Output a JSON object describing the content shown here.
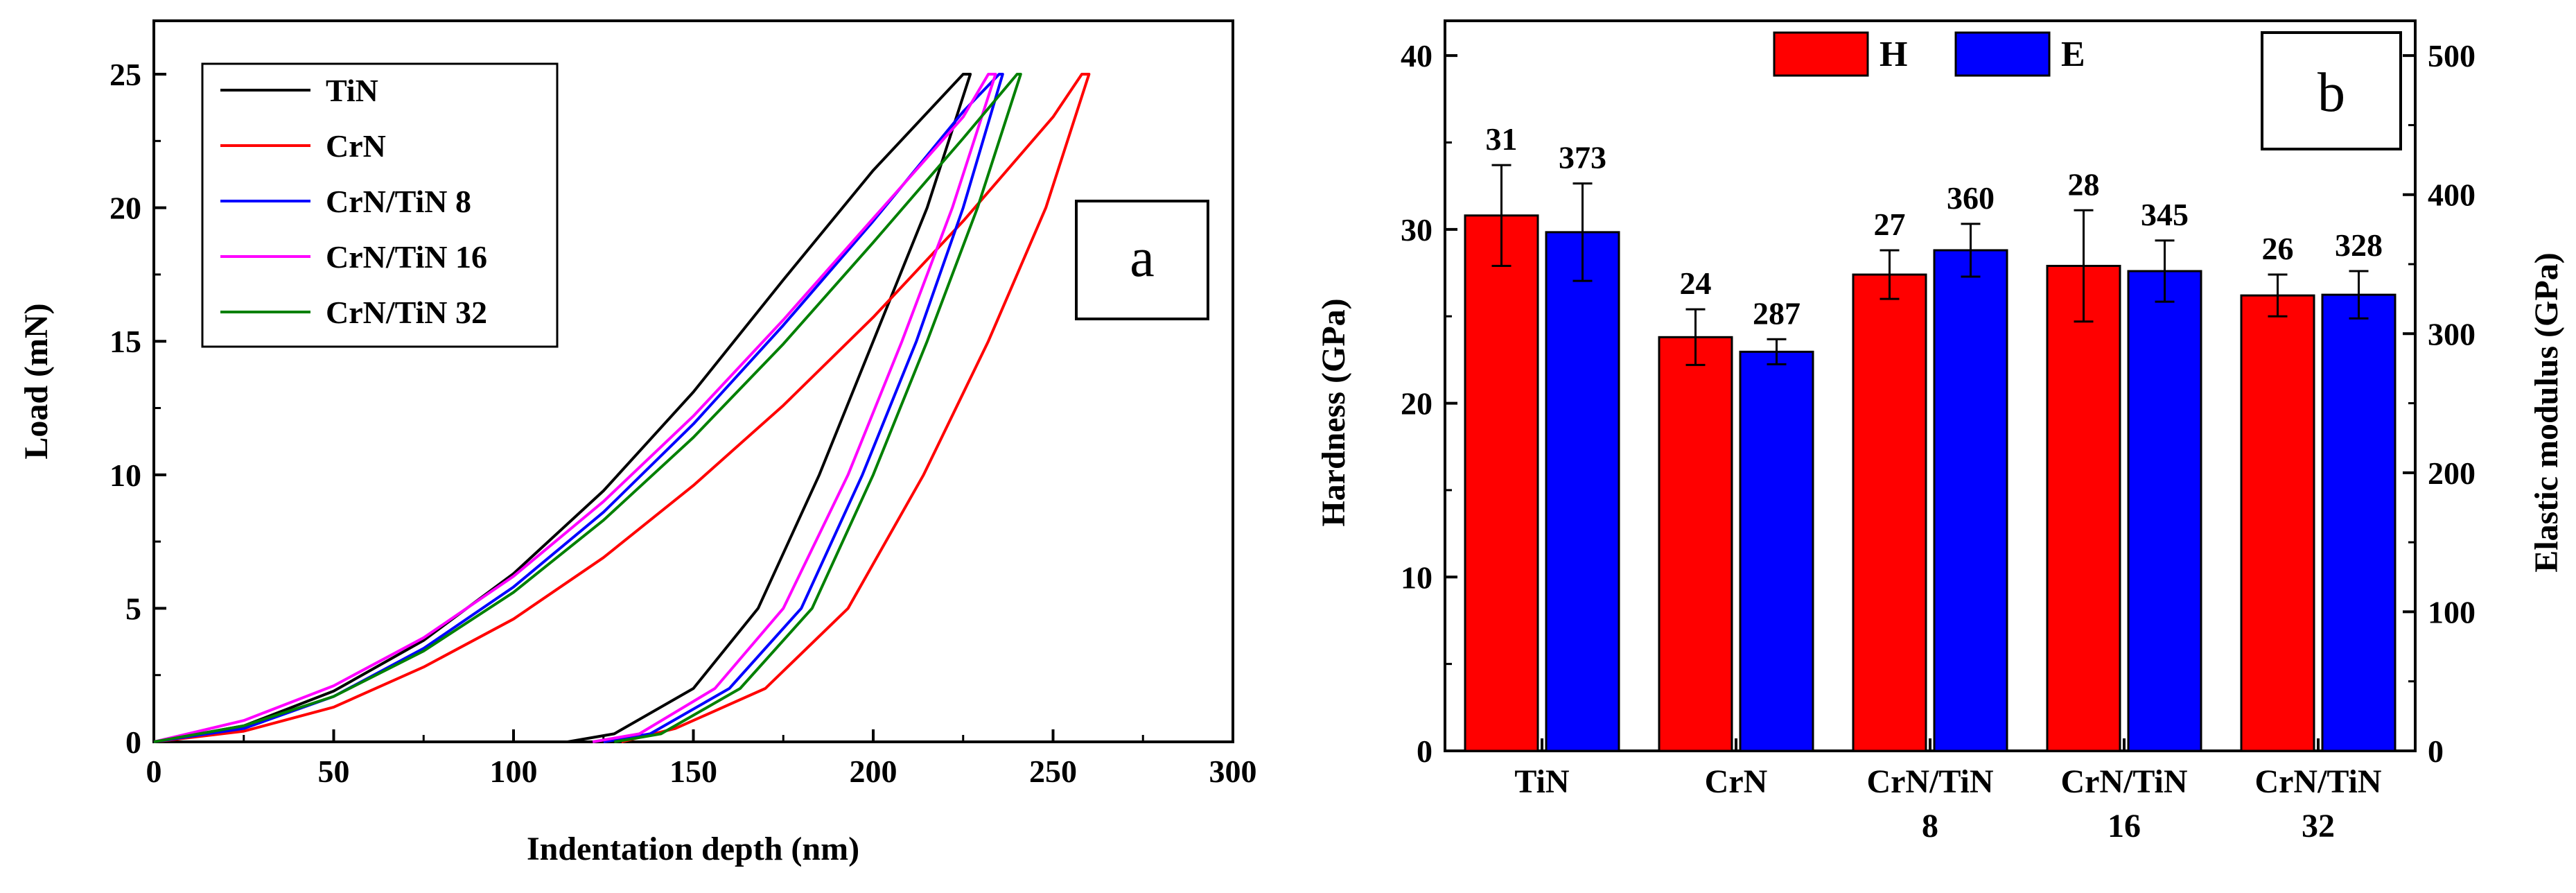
{
  "chart_data": [
    {
      "panel_label": "a",
      "type": "line",
      "xlabel": "Indentation depth (nm)",
      "ylabel": "Load (mN)",
      "xlim": [
        0,
        300
      ],
      "ylim": [
        0,
        27
      ],
      "xticks": [
        0,
        50,
        100,
        150,
        200,
        250,
        300
      ],
      "yticks": [
        0,
        5,
        10,
        15,
        20,
        25
      ],
      "legend_position": "top-left",
      "series": [
        {
          "name": "TiN",
          "color": "#000000",
          "loading": [
            [
              0,
              0
            ],
            [
              25,
              0.6
            ],
            [
              50,
              1.9
            ],
            [
              75,
              3.8
            ],
            [
              100,
              6.3
            ],
            [
              125,
              9.4
            ],
            [
              150,
              13.1
            ],
            [
              175,
              17.3
            ],
            [
              200,
              21.4
            ],
            [
              225,
              25
            ]
          ],
          "unloading": [
            [
              227,
              25
            ],
            [
              215,
              20
            ],
            [
              200,
              15
            ],
            [
              185,
              10
            ],
            [
              168,
              5
            ],
            [
              150,
              2
            ],
            [
              128,
              0.3
            ],
            [
              115,
              0
            ]
          ]
        },
        {
          "name": "CrN",
          "color": "#ff0000",
          "loading": [
            [
              0,
              0
            ],
            [
              25,
              0.4
            ],
            [
              50,
              1.3
            ],
            [
              75,
              2.8
            ],
            [
              100,
              4.6
            ],
            [
              125,
              6.9
            ],
            [
              150,
              9.6
            ],
            [
              175,
              12.6
            ],
            [
              200,
              15.9
            ],
            [
              225,
              19.5
            ],
            [
              250,
              23.4
            ],
            [
              258,
              25
            ]
          ],
          "unloading": [
            [
              260,
              25
            ],
            [
              248,
              20
            ],
            [
              232,
              15
            ],
            [
              214,
              10
            ],
            [
              193,
              5
            ],
            [
              170,
              2
            ],
            [
              145,
              0.5
            ],
            [
              130,
              0
            ]
          ]
        },
        {
          "name": "CrN/TiN 8",
          "color": "#0000ff",
          "loading": [
            [
              0,
              0
            ],
            [
              25,
              0.5
            ],
            [
              50,
              1.7
            ],
            [
              75,
              3.5
            ],
            [
              100,
              5.8
            ],
            [
              125,
              8.6
            ],
            [
              150,
              11.9
            ],
            [
              175,
              15.6
            ],
            [
              200,
              19.5
            ],
            [
              225,
              23.6
            ],
            [
              235,
              25
            ]
          ],
          "unloading": [
            [
              236,
              25
            ],
            [
              225,
              20
            ],
            [
              212,
              15
            ],
            [
              197,
              10
            ],
            [
              180,
              5
            ],
            [
              160,
              2
            ],
            [
              138,
              0.3
            ],
            [
              125,
              0
            ]
          ]
        },
        {
          "name": "CrN/TiN 16",
          "color": "#ff00ff",
          "loading": [
            [
              0,
              0
            ],
            [
              25,
              0.8
            ],
            [
              50,
              2.1
            ],
            [
              75,
              3.9
            ],
            [
              100,
              6.2
            ],
            [
              125,
              9
            ],
            [
              150,
              12.2
            ],
            [
              175,
              15.8
            ],
            [
              200,
              19.6
            ],
            [
              225,
              23.4
            ],
            [
              232,
              25
            ]
          ],
          "unloading": [
            [
              234,
              25
            ],
            [
              222,
              20
            ],
            [
              208,
              15
            ],
            [
              193,
              10
            ],
            [
              175,
              5
            ],
            [
              156,
              2
            ],
            [
              135,
              0.3
            ],
            [
              122,
              0
            ]
          ]
        },
        {
          "name": "CrN/TiN 32",
          "color": "#008000",
          "loading": [
            [
              0,
              0
            ],
            [
              25,
              0.6
            ],
            [
              50,
              1.7
            ],
            [
              75,
              3.4
            ],
            [
              100,
              5.6
            ],
            [
              125,
              8.3
            ],
            [
              150,
              11.4
            ],
            [
              175,
              14.9
            ],
            [
              200,
              18.7
            ],
            [
              225,
              22.6
            ],
            [
              240,
              25
            ]
          ],
          "unloading": [
            [
              241,
              25
            ],
            [
              229,
              20
            ],
            [
              215,
              15
            ],
            [
              200,
              10
            ],
            [
              183,
              5
            ],
            [
              163,
              2
            ],
            [
              141,
              0.3
            ],
            [
              128,
              0
            ]
          ]
        }
      ]
    },
    {
      "panel_label": "b",
      "type": "bar",
      "categories": [
        "TiN",
        "CrN",
        "CrN/TiN 8",
        "CrN/TiN 16",
        "CrN/TiN 32"
      ],
      "tick_labels": [
        [
          "TiN"
        ],
        [
          "CrN"
        ],
        [
          "CrN/TiN",
          "8"
        ],
        [
          "CrN/TiN",
          "16"
        ],
        [
          "CrN/TiN",
          "32"
        ]
      ],
      "ylabel_left": "Hardness (GPa)",
      "ylabel_right": "Elastic modulus (GPa)",
      "ylim_left": [
        0,
        42
      ],
      "ylim_right": [
        0,
        525
      ],
      "yticks_left": [
        0,
        10,
        20,
        30,
        40
      ],
      "yticks_right": [
        0,
        100,
        200,
        300,
        400,
        500
      ],
      "legend_position": "top-center",
      "series": [
        {
          "name": "H",
          "color": "#ff0000",
          "axis": "left",
          "values": [
            30.8,
            23.8,
            27.4,
            27.9,
            26.2
          ],
          "errors": [
            2.9,
            1.6,
            1.4,
            3.2,
            1.2
          ],
          "value_labels": [
            "31",
            "24",
            "27",
            "28",
            "26"
          ]
        },
        {
          "name": "E",
          "color": "#0000ff",
          "axis": "right",
          "values": [
            373,
            287,
            360,
            345,
            328
          ],
          "errors": [
            35,
            9,
            19,
            22,
            17
          ],
          "value_labels": [
            "373",
            "287",
            "360",
            "345",
            "328"
          ]
        }
      ]
    }
  ]
}
